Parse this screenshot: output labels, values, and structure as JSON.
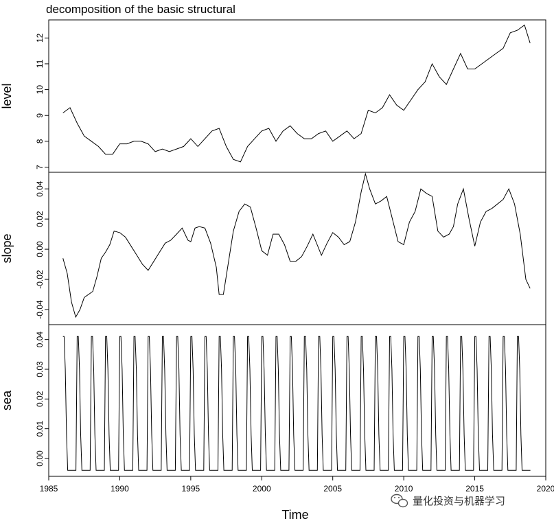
{
  "chart_data": {
    "type": "line",
    "title": "decomposition of the basic structural",
    "xlabel": "Time",
    "xlim": [
      1985,
      2020
    ],
    "x_ticks": [
      "1985",
      "1990",
      "1995",
      "2000",
      "2005",
      "2010",
      "2015",
      "2020"
    ],
    "panels": [
      {
        "name": "level",
        "ylabel": "level",
        "ylim": [
          6.8,
          12.7
        ],
        "y_ticks": [
          "7",
          "8",
          "9",
          "10",
          "11",
          "12"
        ],
        "x": [
          1986.0,
          1986.5,
          1987.0,
          1987.5,
          1988.0,
          1988.5,
          1989.0,
          1989.5,
          1990.0,
          1990.5,
          1991.0,
          1991.5,
          1992.0,
          1992.5,
          1993.0,
          1993.5,
          1994.0,
          1994.5,
          1995.0,
          1995.5,
          1996.0,
          1996.5,
          1997.0,
          1997.5,
          1998.0,
          1998.5,
          1999.0,
          1999.5,
          2000.0,
          2000.5,
          2001.0,
          2001.5,
          2002.0,
          2002.5,
          2003.0,
          2003.5,
          2004.0,
          2004.5,
          2005.0,
          2005.5,
          2006.0,
          2006.5,
          2007.0,
          2007.5,
          2008.0,
          2008.5,
          2009.0,
          2009.5,
          2010.0,
          2010.5,
          2011.0,
          2011.5,
          2012.0,
          2012.5,
          2013.0,
          2013.5,
          2014.0,
          2014.5,
          2015.0,
          2015.5,
          2016.0,
          2016.5,
          2017.0,
          2017.5,
          2018.0,
          2018.5,
          2018.9
        ],
        "values": [
          9.1,
          9.3,
          8.7,
          8.2,
          8.0,
          7.8,
          7.5,
          7.5,
          7.9,
          7.9,
          8.0,
          8.0,
          7.9,
          7.6,
          7.7,
          7.6,
          7.7,
          7.8,
          8.1,
          7.8,
          8.1,
          8.4,
          8.5,
          7.8,
          7.3,
          7.2,
          7.8,
          8.1,
          8.4,
          8.5,
          8.0,
          8.4,
          8.6,
          8.3,
          8.1,
          8.1,
          8.3,
          8.4,
          8.0,
          8.2,
          8.4,
          8.1,
          8.3,
          9.2,
          9.1,
          9.3,
          9.8,
          9.4,
          9.2,
          9.6,
          10.0,
          10.3,
          11.0,
          10.5,
          10.2,
          10.8,
          11.4,
          10.8,
          10.8,
          11.0,
          11.2,
          11.4,
          11.6,
          12.2,
          12.3,
          12.5,
          11.8
        ]
      },
      {
        "name": "slope",
        "ylabel": "slope",
        "ylim": [
          -0.05,
          0.051
        ],
        "y_ticks": [
          "-0.04",
          "-0.02",
          "0.00",
          "0.02",
          "0.04"
        ],
        "x": [
          1986.0,
          1986.3,
          1986.6,
          1986.9,
          1987.2,
          1987.5,
          1987.8,
          1988.1,
          1988.4,
          1988.7,
          1989.0,
          1989.3,
          1989.6,
          1990.0,
          1990.4,
          1990.8,
          1991.2,
          1991.6,
          1992.0,
          1992.4,
          1992.8,
          1993.2,
          1993.6,
          1994.0,
          1994.4,
          1994.8,
          1995.0,
          1995.3,
          1995.6,
          1996.0,
          1996.4,
          1996.8,
          1997.0,
          1997.3,
          1997.6,
          1998.0,
          1998.4,
          1998.8,
          1999.2,
          1999.6,
          2000.0,
          2000.4,
          2000.8,
          2001.2,
          2001.6,
          2002.0,
          2002.4,
          2002.8,
          2003.2,
          2003.6,
          2003.9,
          2004.2,
          2004.6,
          2005.0,
          2005.4,
          2005.8,
          2006.2,
          2006.6,
          2007.0,
          2007.3,
          2007.6,
          2008.0,
          2008.4,
          2008.8,
          2009.2,
          2009.6,
          2010.0,
          2010.4,
          2010.8,
          2011.2,
          2011.6,
          2012.0,
          2012.4,
          2012.8,
          2013.2,
          2013.5,
          2013.8,
          2014.2,
          2014.6,
          2015.0,
          2015.4,
          2015.8,
          2016.2,
          2016.6,
          2017.0,
          2017.4,
          2017.8,
          2018.2,
          2018.6,
          2018.9
        ],
        "values": [
          -0.006,
          -0.016,
          -0.035,
          -0.045,
          -0.04,
          -0.032,
          -0.03,
          -0.028,
          -0.018,
          -0.006,
          -0.002,
          0.003,
          0.012,
          0.011,
          0.008,
          0.002,
          -0.004,
          -0.01,
          -0.014,
          -0.008,
          -0.002,
          0.004,
          0.006,
          0.01,
          0.014,
          0.006,
          0.005,
          0.014,
          0.015,
          0.014,
          0.004,
          -0.012,
          -0.03,
          -0.03,
          -0.012,
          0.012,
          0.025,
          0.03,
          0.028,
          0.014,
          -0.001,
          -0.004,
          0.01,
          0.01,
          0.003,
          -0.008,
          -0.008,
          -0.005,
          0.002,
          0.01,
          0.003,
          -0.004,
          0.004,
          0.011,
          0.008,
          0.003,
          0.005,
          0.018,
          0.038,
          0.05,
          0.04,
          0.03,
          0.032,
          0.035,
          0.02,
          0.005,
          0.003,
          0.018,
          0.025,
          0.04,
          0.037,
          0.035,
          0.012,
          0.008,
          0.01,
          0.015,
          0.03,
          0.04,
          0.02,
          0.002,
          0.018,
          0.025,
          0.027,
          0.03,
          0.033,
          0.04,
          0.03,
          0.01,
          -0.02,
          -0.026
        ]
      },
      {
        "name": "sea",
        "ylabel": "sea",
        "ylim": [
          -0.006,
          0.045
        ],
        "y_ticks": [
          "0.00",
          "0.01",
          "0.02",
          "0.03",
          "0.04"
        ],
        "pattern": "seasonal",
        "start_year": 1986,
        "end_year": 2018.92,
        "cycle_values": [
          0.041,
          0.041,
          0.03,
          0.008,
          -0.004,
          -0.004,
          -0.004,
          -0.004,
          -0.004,
          -0.004,
          -0.004,
          -0.004
        ]
      }
    ]
  },
  "watermark": {
    "text": "量化投资与机器学习",
    "icon": "wechat-icon"
  }
}
